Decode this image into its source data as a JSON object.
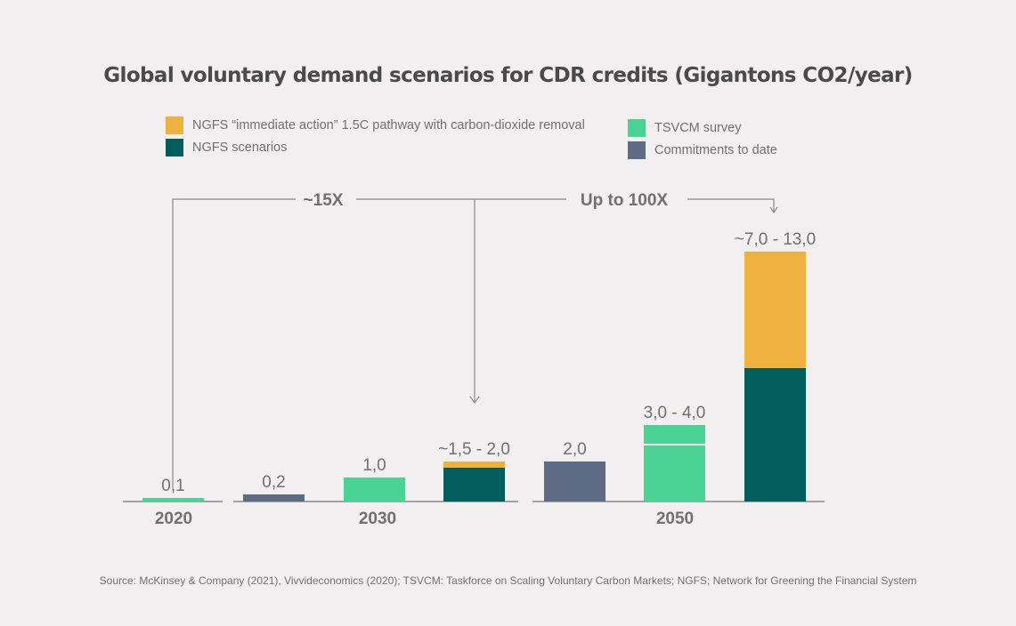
{
  "chart_data": {
    "type": "bar",
    "title": "Global voluntary demand scenarios for CDR credits (Gigantons CO2/year)",
    "legend": [
      {
        "key": "ngfs_immediate",
        "label": "NGFS “immediate action” 1.5C pathway with carbon-dioxide removal",
        "color": "#efb23f"
      },
      {
        "key": "ngfs",
        "label": "NGFS scenarios",
        "color": "#015e5c"
      },
      {
        "key": "tsvcm",
        "label": "TSVCM survey",
        "color": "#4bd396"
      },
      {
        "key": "commitments",
        "label": "Commitments to date",
        "color": "#5e6b84"
      }
    ],
    "groups": [
      {
        "label": "2020",
        "bars": [
          {
            "series": "tsvcm",
            "segments": [
              {
                "series": "tsvcm",
                "value": 0.1
              }
            ],
            "label": "0,1"
          }
        ]
      },
      {
        "label": "2030",
        "bars": [
          {
            "series": "commitments",
            "segments": [
              {
                "series": "commitments",
                "value": 0.2
              }
            ],
            "label": "0,2"
          },
          {
            "series": "tsvcm",
            "segments": [
              {
                "series": "tsvcm",
                "value": 1.0
              }
            ],
            "label": "1,0"
          },
          {
            "series": "ngfs",
            "segments": [
              {
                "series": "ngfs",
                "value": 1.5
              },
              {
                "series": "ngfs_immediate",
                "value": 0.5
              }
            ],
            "label": "~1,5 - 2,0"
          }
        ]
      },
      {
        "label": "2050",
        "bars": [
          {
            "series": "commitments",
            "segments": [
              {
                "series": "commitments",
                "value": 2.0
              }
            ],
            "label": "2,0"
          },
          {
            "series": "tsvcm",
            "segments": [
              {
                "series": "tsvcm",
                "value": 3.0
              },
              {
                "series": "tsvcm",
                "value": 1.0
              }
            ],
            "label": "3,0 - 4,0"
          },
          {
            "series": "ngfs",
            "segments": [
              {
                "series": "ngfs",
                "value": 7.0
              },
              {
                "series": "ngfs_immediate",
                "value": 6.0
              }
            ],
            "label": "~7,0 - 13,0"
          }
        ]
      }
    ],
    "annotations": [
      {
        "text": "~15X",
        "from": "2020",
        "to": "2030"
      },
      {
        "text": "Up to 100X",
        "from": "2020",
        "to": "2050"
      }
    ],
    "xlabel": "",
    "ylabel": "",
    "grid": false
  },
  "source": "Source: McKinsey & Company (2021), Vivvideconomics (2020); TSVCM: Taskforce on Scaling Voluntary Carbon Markets; NGFS; Network for Greening the Financial System",
  "colors": {
    "text": "#707070",
    "axis": "#8a8a8a"
  }
}
